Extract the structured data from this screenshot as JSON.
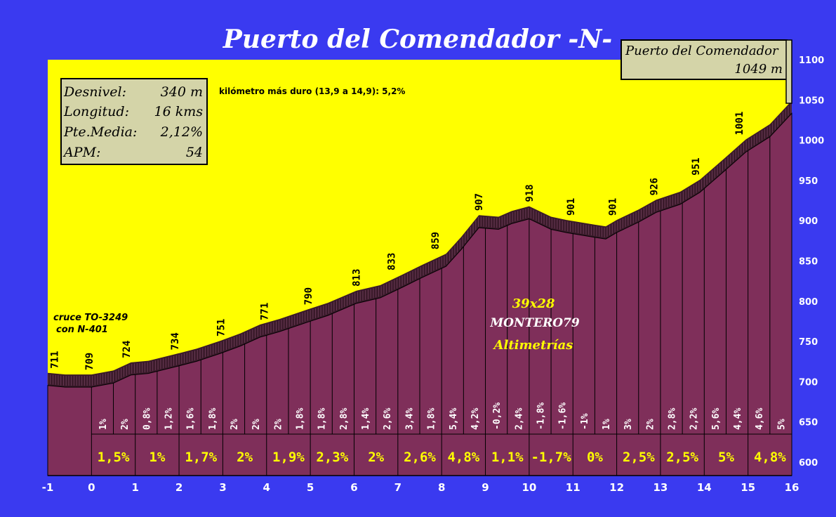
{
  "title": "Puerto del Comendador -N-",
  "colors": {
    "background": "#3a3af0",
    "sky": "#ffff00",
    "profile": "#7f2f5a",
    "road": "#3a1a2a",
    "box": "#d4d4a8"
  },
  "stats": [
    {
      "label": "Desnivel:",
      "value": "340 m"
    },
    {
      "label": "Longitud:",
      "value": "16 kms"
    },
    {
      "label": "Pte.Media:",
      "value": "2,12%"
    },
    {
      "label": "APM:",
      "value": "54"
    }
  ],
  "hardest_km": "kilómetro más duro (13,9 a 14,9):  5,2%",
  "summit": {
    "name": "Puerto del Comendador",
    "elevation": "1049 m"
  },
  "junction": {
    "line1": "cruce TO-3249",
    "line2": "con N-401"
  },
  "credits": {
    "gear": "39x28",
    "author": "MONTERO79",
    "site": "Altimetrías"
  },
  "chart_data": {
    "type": "area",
    "xlim": [
      -1,
      16
    ],
    "ylim": [
      590,
      1110
    ],
    "x_ticks": [
      "-1",
      "0",
      "1",
      "2",
      "3",
      "4",
      "5",
      "6",
      "7",
      "8",
      "9",
      "10",
      "11",
      "12",
      "13",
      "14",
      "15",
      "16"
    ],
    "y_ticks": [
      "600",
      "650",
      "700",
      "750",
      "800",
      "850",
      "900",
      "950",
      "1000",
      "1050",
      "1100"
    ],
    "profile": [
      [
        -1,
        711
      ],
      [
        -0.6,
        709
      ],
      [
        0,
        709
      ],
      [
        0.5,
        714
      ],
      [
        0.9,
        724
      ],
      [
        1.3,
        726
      ],
      [
        1.9,
        734
      ],
      [
        2.4,
        741
      ],
      [
        2.95,
        751
      ],
      [
        3.4,
        760
      ],
      [
        3.85,
        771
      ],
      [
        4.3,
        778
      ],
      [
        4.95,
        790
      ],
      [
        5.4,
        798
      ],
      [
        6.05,
        813
      ],
      [
        6.6,
        820
      ],
      [
        7.1,
        833
      ],
      [
        7.55,
        845
      ],
      [
        8.1,
        859
      ],
      [
        8.45,
        880
      ],
      [
        8.85,
        907
      ],
      [
        9.3,
        905
      ],
      [
        9.6,
        912
      ],
      [
        10.0,
        918
      ],
      [
        10.5,
        905
      ],
      [
        10.85,
        901
      ],
      [
        11.5,
        895
      ],
      [
        11.75,
        893
      ],
      [
        12.0,
        901
      ],
      [
        12.5,
        914
      ],
      [
        12.9,
        926
      ],
      [
        13.45,
        936
      ],
      [
        13.9,
        951
      ],
      [
        14.45,
        977
      ],
      [
        14.95,
        1001
      ],
      [
        15.5,
        1020
      ],
      [
        16,
        1049
      ]
    ],
    "elevation_labels": [
      {
        "x": -0.85,
        "y": 711,
        "label": "711"
      },
      {
        "x": -0.05,
        "y": 709,
        "label": "709"
      },
      {
        "x": 0.8,
        "y": 724,
        "label": "724"
      },
      {
        "x": 1.9,
        "y": 734,
        "label": "734"
      },
      {
        "x": 2.95,
        "y": 751,
        "label": "751"
      },
      {
        "x": 3.95,
        "y": 771,
        "label": "771"
      },
      {
        "x": 4.95,
        "y": 790,
        "label": "790"
      },
      {
        "x": 6.05,
        "y": 813,
        "label": "813"
      },
      {
        "x": 6.85,
        "y": 833,
        "label": "833"
      },
      {
        "x": 7.85,
        "y": 859,
        "label": "859"
      },
      {
        "x": 8.85,
        "y": 907,
        "label": "907"
      },
      {
        "x": 10.0,
        "y": 918,
        "label": "918"
      },
      {
        "x": 10.95,
        "y": 901,
        "label": "901"
      },
      {
        "x": 11.9,
        "y": 901,
        "label": "901"
      },
      {
        "x": 12.85,
        "y": 926,
        "label": "926"
      },
      {
        "x": 13.8,
        "y": 951,
        "label": "951"
      },
      {
        "x": 14.8,
        "y": 1001,
        "label": "1001"
      }
    ],
    "km_grades": [
      {
        "x": 0.25,
        "label": "1%"
      },
      {
        "x": 0.75,
        "label": "2%"
      },
      {
        "x": 1.25,
        "label": "0,8%"
      },
      {
        "x": 1.75,
        "label": "1,2%"
      },
      {
        "x": 2.25,
        "label": "1,6%"
      },
      {
        "x": 2.75,
        "label": "1,8%"
      },
      {
        "x": 3.25,
        "label": "2%"
      },
      {
        "x": 3.75,
        "label": "2%"
      },
      {
        "x": 4.25,
        "label": "2%"
      },
      {
        "x": 4.75,
        "label": "1,8%"
      },
      {
        "x": 5.25,
        "label": "1,8%"
      },
      {
        "x": 5.75,
        "label": "2,8%"
      },
      {
        "x": 6.25,
        "label": "1,4%"
      },
      {
        "x": 6.75,
        "label": "2,6%"
      },
      {
        "x": 7.25,
        "label": "3,4%"
      },
      {
        "x": 7.75,
        "label": "1,8%"
      },
      {
        "x": 8.25,
        "label": "5,4%"
      },
      {
        "x": 8.75,
        "label": "4,2%"
      },
      {
        "x": 9.25,
        "label": "-0,2%"
      },
      {
        "x": 9.75,
        "label": "2,4%"
      },
      {
        "x": 10.25,
        "label": "-1,8%"
      },
      {
        "x": 10.75,
        "label": "-1,6%"
      },
      {
        "x": 11.25,
        "label": "-1%"
      },
      {
        "x": 11.75,
        "label": "1%"
      },
      {
        "x": 12.25,
        "label": "3%"
      },
      {
        "x": 12.75,
        "label": "2%"
      },
      {
        "x": 13.25,
        "label": "2,8%"
      },
      {
        "x": 13.75,
        "label": "2,2%"
      },
      {
        "x": 14.25,
        "label": "5,6%"
      },
      {
        "x": 14.75,
        "label": "4,4%"
      },
      {
        "x": 15.25,
        "label": "4,6%"
      },
      {
        "x": 15.75,
        "label": "5%"
      }
    ],
    "segment_grades": [
      {
        "from": 0,
        "to": 1,
        "label": "1,5%"
      },
      {
        "from": 1,
        "to": 2,
        "label": "1%"
      },
      {
        "from": 2,
        "to": 3,
        "label": "1,7%"
      },
      {
        "from": 3,
        "to": 4,
        "label": "2%"
      },
      {
        "from": 4,
        "to": 5,
        "label": "1,9%"
      },
      {
        "from": 5,
        "to": 6,
        "label": "2,3%"
      },
      {
        "from": 6,
        "to": 7,
        "label": "2%"
      },
      {
        "from": 7,
        "to": 8,
        "label": "2,6%"
      },
      {
        "from": 8,
        "to": 9,
        "label": "4,8%"
      },
      {
        "from": 9,
        "to": 10,
        "label": "1,1%"
      },
      {
        "from": 10,
        "to": 11,
        "label": "-1,7%"
      },
      {
        "from": 11,
        "to": 12,
        "label": "0%"
      },
      {
        "from": 12,
        "to": 13,
        "label": "2,5%"
      },
      {
        "from": 13,
        "to": 14,
        "label": "2,5%"
      },
      {
        "from": 14,
        "to": 15,
        "label": "5%"
      },
      {
        "from": 15,
        "to": 16,
        "label": "4,8%"
      }
    ]
  }
}
